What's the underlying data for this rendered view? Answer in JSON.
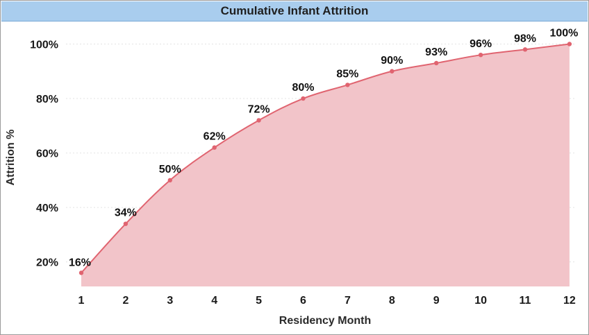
{
  "chart_data": {
    "type": "area",
    "title": "Cumulative Infant Attrition",
    "xlabel": "Residency Month",
    "ylabel": "Attrition %",
    "categories": [
      "1",
      "2",
      "3",
      "4",
      "5",
      "6",
      "7",
      "8",
      "9",
      "10",
      "11",
      "12"
    ],
    "series": [
      {
        "values": [
          16,
          34,
          50,
          62,
          72,
          80,
          85,
          90,
          93,
          96,
          98,
          100
        ],
        "labels": [
          "16%",
          "34%",
          "50%",
          "62%",
          "72%",
          "80%",
          "85%",
          "90%",
          "93%",
          "96%",
          "98%",
          "100%"
        ]
      }
    ],
    "y_ticks": [
      20,
      40,
      60,
      80,
      100
    ],
    "y_tick_labels": [
      "20%",
      "40%",
      "60%",
      "80%",
      "100%"
    ],
    "ylim": [
      11,
      107
    ],
    "grid": true,
    "line_color": "#e06470",
    "fill_color": "#f2c4c9",
    "header_color": "#a9cdee"
  }
}
